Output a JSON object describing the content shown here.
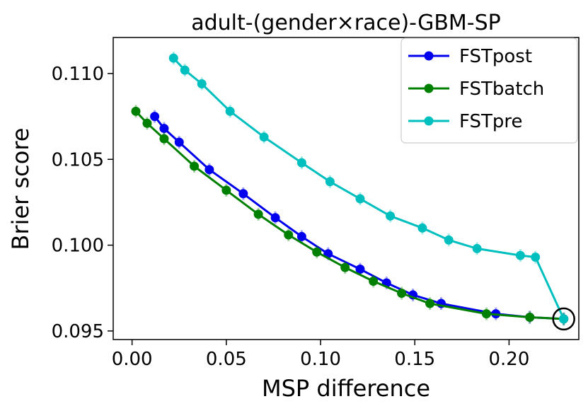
{
  "chart_data": {
    "type": "line",
    "title": "adult-(gender×race)-GBM-SP",
    "xlabel": "MSP difference",
    "ylabel": "Brier score",
    "xlim": [
      -0.01,
      0.237
    ],
    "ylim": [
      0.0945,
      0.1121
    ],
    "xticks": [
      0.0,
      0.05,
      0.1,
      0.15,
      0.2
    ],
    "xtick_labels": [
      "0.00",
      "0.05",
      "0.10",
      "0.15",
      "0.20"
    ],
    "yticks": [
      0.095,
      0.1,
      0.105,
      0.11
    ],
    "ytick_labels": [
      "0.095",
      "0.100",
      "0.105",
      "0.110"
    ],
    "grid": false,
    "legend_position": "top-right",
    "series": [
      {
        "name": "FSTpost",
        "color": "#0000ee",
        "x": [
          0.012,
          0.017,
          0.025,
          0.041,
          0.059,
          0.076,
          0.09,
          0.104,
          0.121,
          0.135,
          0.149,
          0.164,
          0.193,
          0.211,
          0.229
        ],
        "y": [
          0.1075,
          0.1068,
          0.106,
          0.1044,
          0.103,
          0.1016,
          0.1005,
          0.0995,
          0.0986,
          0.0978,
          0.0971,
          0.0966,
          0.096,
          0.0958,
          0.0957
        ]
      },
      {
        "name": "FSTbatch",
        "color": "#008000",
        "x": [
          0.002,
          0.008,
          0.017,
          0.033,
          0.05,
          0.067,
          0.083,
          0.098,
          0.113,
          0.128,
          0.143,
          0.158,
          0.188,
          0.211,
          0.229
        ],
        "y": [
          0.1078,
          0.1071,
          0.1062,
          0.1046,
          0.1032,
          0.1018,
          0.1006,
          0.0996,
          0.0987,
          0.0979,
          0.0972,
          0.0966,
          0.096,
          0.0958,
          0.0957
        ]
      },
      {
        "name": "FSTpre",
        "color": "#00bfbf",
        "x": [
          0.022,
          0.028,
          0.037,
          0.052,
          0.07,
          0.09,
          0.105,
          0.121,
          0.137,
          0.154,
          0.168,
          0.183,
          0.206,
          0.214,
          0.229
        ],
        "y": [
          0.1109,
          0.1102,
          0.1094,
          0.1078,
          0.1063,
          0.1048,
          0.1037,
          0.1027,
          0.1017,
          0.101,
          0.1003,
          0.0998,
          0.0994,
          0.0993,
          0.0957
        ]
      }
    ],
    "annotations": [
      {
        "type": "circle",
        "x": 0.229,
        "y": 0.0957,
        "label": ""
      }
    ]
  }
}
